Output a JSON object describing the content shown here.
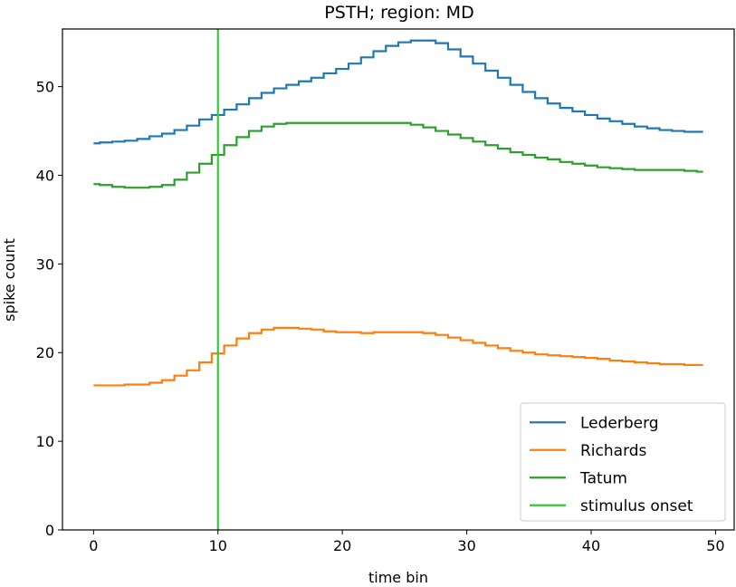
{
  "chart_data": {
    "type": "line",
    "drawstyle": "steps-mid",
    "title": "PSTH; region: MD",
    "xlabel": "time bin",
    "ylabel": "spike count",
    "xlim": [
      -2.5,
      51.5
    ],
    "ylim": [
      0,
      56.5
    ],
    "xticks": [
      0,
      10,
      20,
      30,
      40,
      50
    ],
    "yticks": [
      0,
      10,
      20,
      30,
      40,
      50
    ],
    "legend_position": "bottom-right",
    "x": [
      0,
      1,
      2,
      3,
      4,
      5,
      6,
      7,
      8,
      9,
      10,
      11,
      12,
      13,
      14,
      15,
      16,
      17,
      18,
      19,
      20,
      21,
      22,
      23,
      24,
      25,
      26,
      27,
      28,
      29,
      30,
      31,
      32,
      33,
      34,
      35,
      36,
      37,
      38,
      39,
      40,
      41,
      42,
      43,
      44,
      45,
      46,
      47,
      48,
      49
    ],
    "series": [
      {
        "name": "Lederberg",
        "color": "#1f77b4",
        "values": [
          43.6,
          43.7,
          43.8,
          43.9,
          44.1,
          44.4,
          44.7,
          45.1,
          45.6,
          46.3,
          46.8,
          47.4,
          48.0,
          48.7,
          49.3,
          49.8,
          50.2,
          50.6,
          51.0,
          51.5,
          52.0,
          52.6,
          53.3,
          54.0,
          54.6,
          55.0,
          55.2,
          55.2,
          54.9,
          54.2,
          53.4,
          52.6,
          51.8,
          51.0,
          50.2,
          49.4,
          48.7,
          48.1,
          47.6,
          47.2,
          46.8,
          46.4,
          46.1,
          45.8,
          45.5,
          45.3,
          45.1,
          45.0,
          44.9,
          44.9
        ]
      },
      {
        "name": "Richards",
        "color": "#ff7f0e",
        "values": [
          16.3,
          16.3,
          16.3,
          16.4,
          16.4,
          16.6,
          16.9,
          17.4,
          18.0,
          18.9,
          19.9,
          20.8,
          21.6,
          22.2,
          22.6,
          22.8,
          22.8,
          22.7,
          22.6,
          22.4,
          22.3,
          22.3,
          22.2,
          22.3,
          22.3,
          22.3,
          22.3,
          22.2,
          22.0,
          21.7,
          21.4,
          21.1,
          20.8,
          20.5,
          20.2,
          20.0,
          19.8,
          19.7,
          19.6,
          19.5,
          19.4,
          19.3,
          19.1,
          19.0,
          18.9,
          18.8,
          18.7,
          18.7,
          18.6,
          18.6
        ]
      },
      {
        "name": "Tatum",
        "color": "#2ca02c",
        "values": [
          39.0,
          38.9,
          38.7,
          38.6,
          38.6,
          38.7,
          38.9,
          39.5,
          40.3,
          41.3,
          42.3,
          43.4,
          44.3,
          45.0,
          45.5,
          45.8,
          45.9,
          45.9,
          45.9,
          45.9,
          45.9,
          45.9,
          45.9,
          45.9,
          45.9,
          45.9,
          45.7,
          45.4,
          45.0,
          44.6,
          44.2,
          43.8,
          43.4,
          43.0,
          42.6,
          42.3,
          42.0,
          41.8,
          41.5,
          41.3,
          41.1,
          40.9,
          40.8,
          40.7,
          40.6,
          40.6,
          40.6,
          40.6,
          40.5,
          40.4
        ]
      }
    ],
    "annotations": [
      {
        "type": "vline",
        "x": 10,
        "name": "stimulus onset",
        "color": "#32cd32"
      }
    ]
  }
}
